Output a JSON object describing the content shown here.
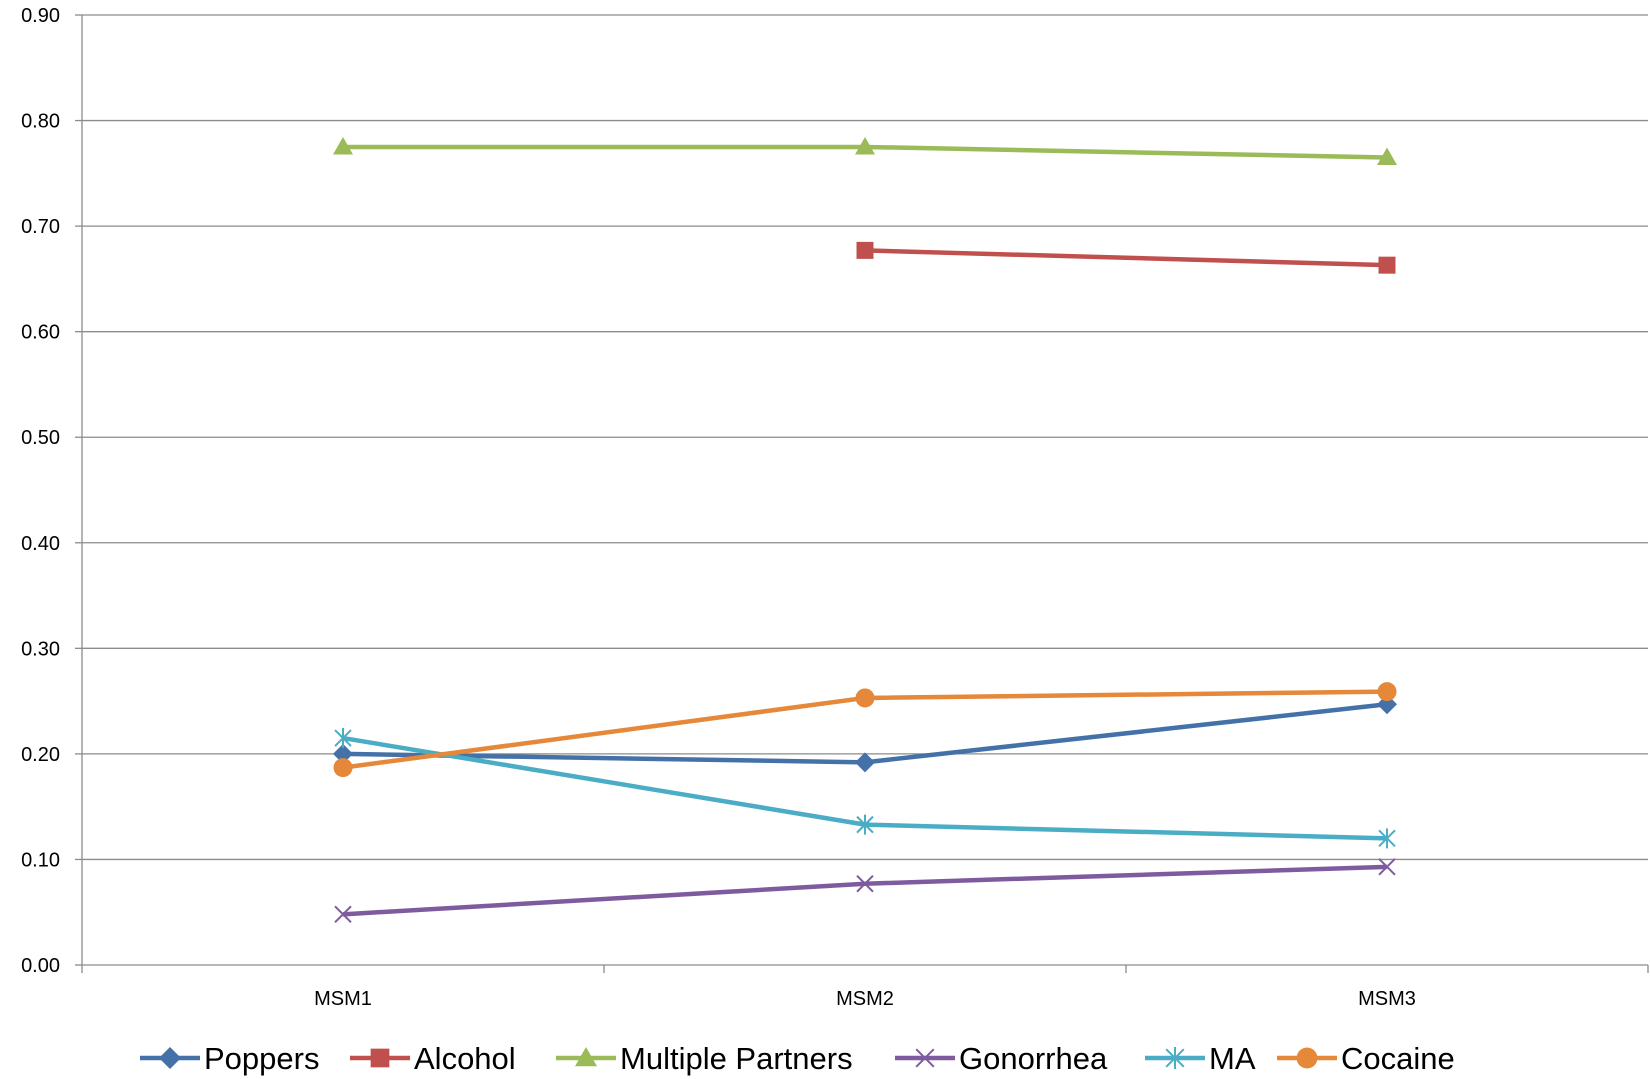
{
  "chart_data": {
    "type": "line",
    "categories": [
      "MSM1",
      "MSM2",
      "MSM3"
    ],
    "ylim": [
      0,
      0.9
    ],
    "yticks": [
      "0.00",
      "0.10",
      "0.20",
      "0.30",
      "0.40",
      "0.50",
      "0.60",
      "0.70",
      "0.80",
      "0.90"
    ],
    "grid": true,
    "legend_position": "bottom",
    "series": [
      {
        "name": "Poppers",
        "values": [
          0.2,
          0.192,
          0.247
        ],
        "color": "#4472A8",
        "marker": "diamond"
      },
      {
        "name": "Alcohol",
        "values": [
          null,
          0.677,
          0.663
        ],
        "color": "#C0504D",
        "marker": "square"
      },
      {
        "name": "Multiple Partners",
        "values": [
          0.775,
          0.775,
          0.765
        ],
        "color": "#9BBB59",
        "marker": "triangle"
      },
      {
        "name": "Gonorrhea",
        "values": [
          0.048,
          0.077,
          0.093
        ],
        "color": "#7E5B9E",
        "marker": "x"
      },
      {
        "name": "MA",
        "values": [
          0.215,
          0.133,
          0.12
        ],
        "color": "#4BACC6",
        "marker": "star"
      },
      {
        "name": "Cocaine",
        "values": [
          0.187,
          0.253,
          0.259
        ],
        "color": "#E5883A",
        "marker": "circle"
      }
    ]
  }
}
